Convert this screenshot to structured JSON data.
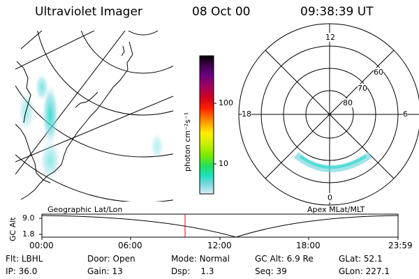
{
  "header": {
    "title": "Ultraviolet Imager",
    "date": "08 Oct 00",
    "time": "09:38:39 UT"
  },
  "colorbar": {
    "unit_label": "photon cm⁻²s⁻¹",
    "ticks": [
      "100",
      "10"
    ],
    "colors": [
      "#000000",
      "#3a0044",
      "#6a0080",
      "#a00060",
      "#d00020",
      "#ff2000",
      "#ff6a00",
      "#ffb000",
      "#ffee00",
      "#c8f000",
      "#7ce800",
      "#20e060",
      "#20e0c0",
      "#7ad8e0",
      "#d8eef2"
    ]
  },
  "polar_plot": {
    "mlt_labels": [
      "12",
      "18",
      "6",
      "0"
    ],
    "lat_labels": [
      "60",
      "70",
      "80"
    ]
  },
  "panel_labels": {
    "left": "Geographic Lat/Lon",
    "right": "Apex MLat/MLT"
  },
  "altitude_plot": {
    "ylabel": "GC Alt",
    "y_ticks": [
      "9.0",
      "1.8"
    ],
    "x_ticks": [
      "00:00",
      "06:00",
      "12:00",
      "18:00",
      "23:59"
    ],
    "current_marker_time": "09:38:39"
  },
  "info": {
    "row1": [
      {
        "label": "Flt:",
        "value": "LBHL"
      },
      {
        "label": "Door:",
        "value": "Open"
      },
      {
        "label": "Mode:",
        "value": "Normal"
      },
      {
        "label": "GC Alt:",
        "value": "6.9 Re"
      },
      {
        "label": "GLat:",
        "value": "52.1"
      }
    ],
    "row2": [
      {
        "label": "IP:",
        "value": "36.0"
      },
      {
        "label": "Gain:",
        "value": "13"
      },
      {
        "label": "Dsp:",
        "value": "1.3"
      },
      {
        "label": "Seq:",
        "value": "39"
      },
      {
        "label": "GLon:",
        "value": "227.1"
      }
    ]
  }
}
